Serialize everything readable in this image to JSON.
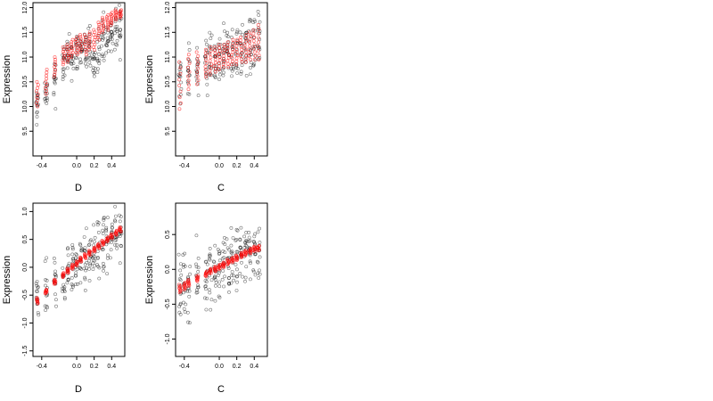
{
  "chart_data": [
    {
      "type": "scatter",
      "xlabel": "D",
      "ylabel": "Expression",
      "xticks": [
        "-0.4",
        "0.0",
        "0.2",
        "0.4"
      ],
      "xtick_values": [
        -0.4,
        0.0,
        0.2,
        0.4
      ],
      "yticks": [
        "9.5",
        "10.0",
        "10.5",
        "11.0",
        "11.5",
        "12.0"
      ],
      "ytick_values": [
        9.5,
        10.0,
        10.5,
        11.0,
        11.5,
        12.0
      ],
      "xlim": [
        -0.5,
        0.55
      ],
      "ylim": [
        9.0,
        12.1
      ],
      "x_groups": [
        -0.45,
        -0.35,
        -0.25,
        -0.15,
        -0.1,
        -0.05,
        0.0,
        0.05,
        0.1,
        0.15,
        0.2,
        0.25,
        0.3,
        0.35,
        0.4,
        0.45,
        0.5
      ],
      "observed_center": [
        10.0,
        10.2,
        10.55,
        10.85,
        10.95,
        11.05,
        11.1,
        11.15,
        11.05,
        11.1,
        11.0,
        11.2,
        11.35,
        11.3,
        11.4,
        11.55,
        11.6
      ],
      "observed_spread": 0.9,
      "fitted_min": [
        10.0,
        10.25,
        10.6,
        10.85,
        10.9,
        11.0,
        11.05,
        11.1,
        11.05,
        11.15,
        11.15,
        11.35,
        11.5,
        11.55,
        11.65,
        11.75,
        11.8
      ],
      "fitted_max": [
        10.5,
        10.75,
        11.0,
        11.2,
        11.25,
        11.35,
        11.4,
        11.45,
        11.45,
        11.5,
        11.55,
        11.7,
        11.8,
        11.85,
        11.9,
        11.95,
        11.95
      ],
      "series": [
        {
          "color": "#000000"
        },
        {
          "color": "#ff0000"
        }
      ]
    },
    {
      "type": "scatter",
      "xlabel": "C",
      "ylabel": "Expression",
      "xticks": [
        "-0.4",
        "0.0",
        "0.2",
        "0.4"
      ],
      "xtick_values": [
        -0.4,
        0.0,
        0.2,
        0.4
      ],
      "yticks": [
        "9.5",
        "10.0",
        "10.5",
        "11.0",
        "11.5",
        "12.0"
      ],
      "ytick_values": [
        9.5,
        10.0,
        10.5,
        11.0,
        11.5,
        12.0
      ],
      "xlim": [
        -0.5,
        0.55
      ],
      "ylim": [
        9.0,
        12.1
      ],
      "x_groups": [
        -0.45,
        -0.35,
        -0.25,
        -0.15,
        -0.1,
        -0.05,
        0.0,
        0.05,
        0.1,
        0.15,
        0.2,
        0.25,
        0.3,
        0.35,
        0.4,
        0.45
      ],
      "observed_center": [
        10.5,
        10.7,
        10.8,
        10.85,
        10.95,
        11.0,
        10.95,
        11.05,
        11.1,
        11.1,
        11.05,
        11.15,
        11.2,
        11.25,
        11.2,
        11.25
      ],
      "observed_spread": 1.1,
      "fitted_min": [
        9.95,
        10.35,
        10.45,
        10.6,
        10.65,
        10.7,
        10.75,
        10.8,
        10.8,
        10.85,
        10.85,
        10.9,
        10.9,
        10.95,
        10.95,
        10.95
      ],
      "fitted_max": [
        10.9,
        11.05,
        11.1,
        11.15,
        11.2,
        11.2,
        11.25,
        11.25,
        11.3,
        11.35,
        11.35,
        11.4,
        11.45,
        11.5,
        11.55,
        11.65
      ],
      "series": [
        {
          "color": "#000000"
        },
        {
          "color": "#ff0000"
        }
      ]
    },
    {
      "type": "scatter",
      "xlabel": "D",
      "ylabel": "Expression",
      "xticks": [
        "-0.4",
        "0.0",
        "0.2",
        "0.4"
      ],
      "xtick_values": [
        -0.4,
        0.0,
        0.2,
        0.4
      ],
      "yticks": [
        "-1.5",
        "-1.0",
        "-0.5",
        "0.0",
        "0.5",
        "1.0"
      ],
      "ytick_values": [
        -1.5,
        -1.0,
        -0.5,
        0.0,
        0.5,
        1.0
      ],
      "xlim": [
        -0.5,
        0.55
      ],
      "ylim": [
        -1.6,
        1.15
      ],
      "x_groups": [
        -0.45,
        -0.35,
        -0.25,
        -0.15,
        -0.1,
        -0.05,
        0.0,
        0.05,
        0.1,
        0.15,
        0.2,
        0.25,
        0.3,
        0.35,
        0.4,
        0.45,
        0.5
      ],
      "observed_center": [
        -0.6,
        -0.45,
        -0.3,
        -0.15,
        -0.05,
        0.0,
        0.05,
        0.1,
        0.15,
        0.2,
        0.25,
        0.3,
        0.4,
        0.45,
        0.5,
        0.6,
        0.65
      ],
      "observed_spread": 1.0,
      "fitted_min": [
        -0.65,
        -0.47,
        -0.3,
        -0.18,
        -0.1,
        -0.03,
        0.03,
        0.1,
        0.16,
        0.22,
        0.28,
        0.34,
        0.4,
        0.46,
        0.52,
        0.58,
        0.64
      ],
      "fitted_max": [
        -0.55,
        -0.4,
        -0.22,
        -0.1,
        -0.02,
        0.05,
        0.11,
        0.18,
        0.24,
        0.3,
        0.36,
        0.42,
        0.48,
        0.54,
        0.6,
        0.66,
        0.72
      ],
      "series": [
        {
          "color": "#000000"
        },
        {
          "color": "#ff0000"
        }
      ]
    },
    {
      "type": "scatter",
      "xlabel": "C",
      "ylabel": "Expression",
      "xticks": [
        "-0.4",
        "0.0",
        "0.2",
        "0.4"
      ],
      "xtick_values": [
        -0.4,
        0.0,
        0.2,
        0.4
      ],
      "yticks": [
        "-1.0",
        "-0.5",
        "0.0",
        "0.5"
      ],
      "ytick_values": [
        -1.0,
        -0.5,
        0.0,
        0.5
      ],
      "xlim": [
        -0.5,
        0.55
      ],
      "ylim": [
        -1.25,
        0.95
      ],
      "x_groups": [
        -0.45,
        -0.4,
        -0.35,
        -0.25,
        -0.15,
        -0.1,
        -0.05,
        0.0,
        0.05,
        0.1,
        0.15,
        0.2,
        0.25,
        0.3,
        0.35,
        0.4,
        0.45
      ],
      "observed_center": [
        -0.3,
        -0.25,
        -0.2,
        -0.15,
        -0.1,
        -0.05,
        0.0,
        0.0,
        0.05,
        0.1,
        0.1,
        0.15,
        0.2,
        0.2,
        0.25,
        0.3,
        0.3
      ],
      "observed_spread": 0.9,
      "fitted_min": [
        -0.33,
        -0.29,
        -0.24,
        -0.17,
        -0.1,
        -0.06,
        -0.03,
        0.0,
        0.03,
        0.07,
        0.1,
        0.13,
        0.17,
        0.2,
        0.23,
        0.26,
        0.27
      ],
      "fitted_max": [
        -0.22,
        -0.19,
        -0.15,
        -0.09,
        -0.03,
        0.01,
        0.04,
        0.07,
        0.1,
        0.14,
        0.17,
        0.2,
        0.24,
        0.27,
        0.3,
        0.33,
        0.34
      ],
      "series": [
        {
          "color": "#000000"
        },
        {
          "color": "#ff0000"
        }
      ]
    }
  ]
}
